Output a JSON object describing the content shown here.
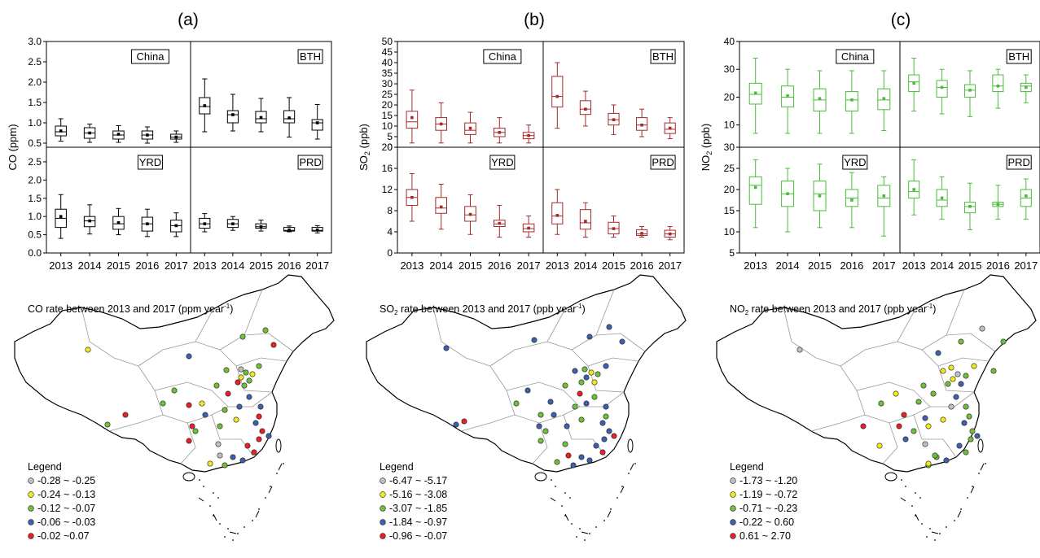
{
  "figure": {
    "panel_labels": [
      "(a)",
      "(b)",
      "(c)"
    ]
  },
  "colors": {
    "co": "#000000",
    "so2": "#a52a2a",
    "no2": "#4cbb3c",
    "legend_classes": [
      "#c0c0c0",
      "#f2ea1f",
      "#6fbf3a",
      "#3f5fb0",
      "#e8202a"
    ],
    "map_outline": "#000000",
    "map_province": "#9a9a9a"
  },
  "chart_data": [
    {
      "type": "box",
      "id": "co",
      "ylabel": "CO (ppm)",
      "categories": [
        "2013",
        "2014",
        "2015",
        "2016",
        "2017"
      ],
      "top_ylim": [
        0.4,
        3.0
      ],
      "top_yticks": [
        "0.5",
        "1.0",
        "1.5",
        "2.0",
        "2.5",
        "3.0"
      ],
      "bottom_ylim": [
        0.0,
        2.9
      ],
      "bottom_yticks": [
        "0.0",
        "0.5",
        "1.0",
        "1.5",
        "2.0",
        "2.5"
      ],
      "regions": [
        {
          "name": "China",
          "row": "top",
          "col": "left",
          "boxes": [
            {
              "min": 0.55,
              "q1": 0.68,
              "med": 0.78,
              "q3": 0.92,
              "max": 1.1,
              "mean": 0.8
            },
            {
              "min": 0.52,
              "q1": 0.62,
              "med": 0.75,
              "q3": 0.88,
              "max": 0.97,
              "mean": 0.75
            },
            {
              "min": 0.52,
              "q1": 0.6,
              "med": 0.7,
              "q3": 0.8,
              "max": 0.93,
              "mean": 0.72
            },
            {
              "min": 0.5,
              "q1": 0.6,
              "med": 0.7,
              "q3": 0.8,
              "max": 0.9,
              "mean": 0.7
            },
            {
              "min": 0.52,
              "q1": 0.6,
              "med": 0.65,
              "q3": 0.72,
              "max": 0.8,
              "mean": 0.65
            }
          ]
        },
        {
          "name": "BTH",
          "row": "top",
          "col": "right",
          "boxes": [
            {
              "min": 0.78,
              "q1": 1.22,
              "med": 1.4,
              "q3": 1.62,
              "max": 2.08,
              "mean": 1.42
            },
            {
              "min": 0.8,
              "q1": 1.0,
              "med": 1.2,
              "q3": 1.3,
              "max": 1.7,
              "mean": 1.2
            },
            {
              "min": 0.78,
              "q1": 1.0,
              "med": 1.1,
              "q3": 1.28,
              "max": 1.6,
              "mean": 1.13
            },
            {
              "min": 0.65,
              "q1": 1.0,
              "med": 1.1,
              "q3": 1.3,
              "max": 1.62,
              "mean": 1.12
            },
            {
              "min": 0.6,
              "q1": 0.82,
              "med": 1.0,
              "q3": 1.08,
              "max": 1.45,
              "mean": 1.0
            }
          ]
        },
        {
          "name": "YRD",
          "row": "bottom",
          "col": "left",
          "boxes": [
            {
              "min": 0.4,
              "q1": 0.7,
              "med": 0.95,
              "q3": 1.2,
              "max": 1.6,
              "mean": 1.0
            },
            {
              "min": 0.52,
              "q1": 0.72,
              "med": 0.88,
              "q3": 1.0,
              "max": 1.32,
              "mean": 0.88
            },
            {
              "min": 0.5,
              "q1": 0.65,
              "med": 0.8,
              "q3": 1.0,
              "max": 1.22,
              "mean": 0.83
            },
            {
              "min": 0.45,
              "q1": 0.6,
              "med": 0.8,
              "q3": 0.98,
              "max": 1.2,
              "mean": 0.8
            },
            {
              "min": 0.45,
              "q1": 0.58,
              "med": 0.75,
              "q3": 0.9,
              "max": 1.1,
              "mean": 0.75
            }
          ]
        },
        {
          "name": "PRD",
          "row": "bottom",
          "col": "right",
          "boxes": [
            {
              "min": 0.58,
              "q1": 0.68,
              "med": 0.8,
              "q3": 0.95,
              "max": 1.08,
              "mean": 0.8
            },
            {
              "min": 0.62,
              "q1": 0.7,
              "med": 0.8,
              "q3": 0.92,
              "max": 1.0,
              "mean": 0.8
            },
            {
              "min": 0.6,
              "q1": 0.68,
              "med": 0.72,
              "q3": 0.8,
              "max": 0.9,
              "mean": 0.72
            },
            {
              "min": 0.58,
              "q1": 0.6,
              "med": 0.62,
              "q3": 0.7,
              "max": 0.74,
              "mean": 0.63
            },
            {
              "min": 0.55,
              "q1": 0.6,
              "med": 0.62,
              "q3": 0.7,
              "max": 0.75,
              "mean": 0.63
            }
          ]
        }
      ]
    },
    {
      "type": "box",
      "id": "so2",
      "ylabel": "SO",
      "ylabel_sub": "2",
      "ylabel_rest": " (ppb)",
      "categories": [
        "2013",
        "2014",
        "2015",
        "2016",
        "2017"
      ],
      "top_ylim": [
        0,
        50
      ],
      "top_yticks": [
        "0",
        "5",
        "10",
        "15",
        "20",
        "25",
        "30",
        "35",
        "40",
        "45",
        "50"
      ],
      "bottom_ylim": [
        0,
        20
      ],
      "bottom_yticks": [
        "0",
        "4",
        "8",
        "12",
        "16",
        "20"
      ],
      "regions": [
        {
          "name": "China",
          "row": "top",
          "col": "left",
          "boxes": [
            {
              "min": 2,
              "q1": 9,
              "med": 12,
              "q3": 17,
              "max": 27,
              "mean": 14
            },
            {
              "min": 2,
              "q1": 8,
              "med": 11,
              "q3": 14,
              "max": 21,
              "mean": 11
            },
            {
              "min": 2,
              "q1": 6,
              "med": 8,
              "q3": 11.5,
              "max": 16.5,
              "mean": 9
            },
            {
              "min": 2,
              "q1": 5,
              "med": 7,
              "q3": 9,
              "max": 14,
              "mean": 7
            },
            {
              "min": 2,
              "q1": 4,
              "med": 5.5,
              "q3": 7,
              "max": 10.5,
              "mean": 5.5
            }
          ]
        },
        {
          "name": "BTH",
          "row": "top",
          "col": "right",
          "boxes": [
            {
              "min": 9,
              "q1": 19,
              "med": 24,
              "q3": 33.5,
              "max": 40,
              "mean": 24
            },
            {
              "min": 10,
              "q1": 15.5,
              "med": 18,
              "q3": 22,
              "max": 26.5,
              "mean": 18
            },
            {
              "min": 6,
              "q1": 10.5,
              "med": 13,
              "q3": 16,
              "max": 20,
              "mean": 13
            },
            {
              "min": 5,
              "q1": 8,
              "med": 10.5,
              "q3": 14,
              "max": 18,
              "mean": 10.5
            },
            {
              "min": 4,
              "q1": 6.5,
              "med": 8.5,
              "q3": 11.5,
              "max": 14,
              "mean": 9
            }
          ]
        },
        {
          "name": "YRD",
          "row": "bottom",
          "col": "left",
          "boxes": [
            {
              "min": 6,
              "q1": 9,
              "med": 10.5,
              "q3": 12,
              "max": 15,
              "mean": 10.5
            },
            {
              "min": 4.5,
              "q1": 7.5,
              "med": 8.5,
              "q3": 10.5,
              "max": 13,
              "mean": 8.7
            },
            {
              "min": 3.5,
              "q1": 6,
              "med": 7.2,
              "q3": 8.8,
              "max": 11,
              "mean": 7.3
            },
            {
              "min": 3,
              "q1": 5,
              "med": 5.5,
              "q3": 6.2,
              "max": 9,
              "mean": 5.6
            },
            {
              "min": 3,
              "q1": 4,
              "med": 4.6,
              "q3": 5.5,
              "max": 7,
              "mean": 4.7
            }
          ]
        },
        {
          "name": "PRD",
          "row": "bottom",
          "col": "right",
          "boxes": [
            {
              "min": 3.5,
              "q1": 5.5,
              "med": 7,
              "q3": 9.5,
              "max": 12,
              "mean": 7.1
            },
            {
              "min": 3,
              "q1": 4.5,
              "med": 5.7,
              "q3": 8.2,
              "max": 9.5,
              "mean": 6
            },
            {
              "min": 3,
              "q1": 3.6,
              "med": 4.6,
              "q3": 5.8,
              "max": 7,
              "mean": 4.6
            },
            {
              "min": 3,
              "q1": 3.3,
              "med": 3.6,
              "q3": 4.4,
              "max": 5,
              "mean": 3.7
            },
            {
              "min": 2.5,
              "q1": 3,
              "med": 3.6,
              "q3": 4.3,
              "max": 5,
              "mean": 3.6
            }
          ]
        }
      ]
    },
    {
      "type": "box",
      "id": "no2",
      "ylabel": "NO",
      "ylabel_sub": "2",
      "ylabel_rest": " (ppb)",
      "categories": [
        "2013",
        "2014",
        "2015",
        "2016",
        "2017"
      ],
      "top_ylim": [
        2,
        40
      ],
      "top_yticks": [
        "10",
        "20",
        "30",
        "40"
      ],
      "bottom_ylim": [
        5,
        30
      ],
      "bottom_yticks": [
        "5",
        "10",
        "15",
        "20",
        "25",
        "30"
      ],
      "regions": [
        {
          "name": "China",
          "row": "top",
          "col": "left",
          "boxes": [
            {
              "min": 7,
              "q1": 17.5,
              "med": 21,
              "q3": 25,
              "max": 34,
              "mean": 21.5
            },
            {
              "min": 7,
              "q1": 16.5,
              "med": 20,
              "q3": 24,
              "max": 30,
              "mean": 20.5
            },
            {
              "min": 7,
              "q1": 15,
              "med": 19,
              "q3": 23,
              "max": 29.5,
              "mean": 19.5
            },
            {
              "min": 7,
              "q1": 15,
              "med": 19,
              "q3": 22,
              "max": 29.5,
              "mean": 19
            },
            {
              "min": 8,
              "q1": 15.5,
              "med": 19,
              "q3": 23,
              "max": 29.5,
              "mean": 19.5
            }
          ]
        },
        {
          "name": "BTH",
          "row": "top",
          "col": "right",
          "boxes": [
            {
              "min": 15,
              "q1": 22,
              "med": 25.5,
              "q3": 28,
              "max": 34,
              "mean": 25
            },
            {
              "min": 14,
              "q1": 20,
              "med": 23.5,
              "q3": 26,
              "max": 30,
              "mean": 23.5
            },
            {
              "min": 13,
              "q1": 20,
              "med": 22.5,
              "q3": 24.5,
              "max": 29.5,
              "mean": 22.5
            },
            {
              "min": 16,
              "q1": 22,
              "med": 24,
              "q3": 28,
              "max": 30,
              "mean": 24
            },
            {
              "min": 18,
              "q1": 22,
              "med": 24,
              "q3": 25,
              "max": 28,
              "mean": 23.5
            }
          ]
        },
        {
          "name": "YRD",
          "row": "bottom",
          "col": "left",
          "boxes": [
            {
              "min": 11,
              "q1": 16.5,
              "med": 21,
              "q3": 23,
              "max": 27,
              "mean": 20.5
            },
            {
              "min": 10,
              "q1": 16,
              "med": 19,
              "q3": 22,
              "max": 25,
              "mean": 19
            },
            {
              "min": 11,
              "q1": 15,
              "med": 19,
              "q3": 22,
              "max": 26,
              "mean": 18.5
            },
            {
              "min": 11,
              "q1": 16,
              "med": 18,
              "q3": 20,
              "max": 24,
              "mean": 17.5
            },
            {
              "min": 9,
              "q1": 16,
              "med": 18,
              "q3": 21,
              "max": 23,
              "mean": 18.5
            }
          ]
        },
        {
          "name": "PRD",
          "row": "bottom",
          "col": "right",
          "boxes": [
            {
              "min": 14,
              "q1": 18,
              "med": 19.5,
              "q3": 22,
              "max": 27,
              "mean": 20
            },
            {
              "min": 13,
              "q1": 16,
              "med": 17.5,
              "q3": 20,
              "max": 23,
              "mean": 18
            },
            {
              "min": 10.5,
              "q1": 14.5,
              "med": 16,
              "q3": 17,
              "max": 21.5,
              "mean": 16
            },
            {
              "min": 13,
              "q1": 16,
              "med": 16.5,
              "q3": 17,
              "max": 21,
              "mean": 16.5
            },
            {
              "min": 13,
              "q1": 16,
              "med": 18,
              "q3": 20,
              "max": 22.5,
              "mean": 18.5
            }
          ]
        }
      ]
    }
  ],
  "maps": [
    {
      "title": "CO rate between 2013 and 2017 (ppm year",
      "title_sup": "-1",
      "title_end": ")",
      "legend_title": "Legend",
      "legend": [
        "-0.28 ~ -0.25",
        "-0.24 ~ -0.13",
        "-0.12 ~ -0.07",
        "-0.06 ~ -0.03",
        "-0.02 ~0.07"
      ]
    },
    {
      "title": "SO",
      "title_sub": "2",
      "title_rest": " rate between 2013 and 2017 (ppb year",
      "title_sup": "-1",
      "title_end": ")",
      "legend_title": "Legend",
      "legend": [
        "-6.47 ~ -5.17",
        "-5.16 ~ -3.08",
        "-3.07 ~ -1.85",
        "-1.84 ~ -0.97",
        "-0.96 ~ -0.07"
      ]
    },
    {
      "title": "NO",
      "title_sub": "2",
      "title_rest": " rate between 2013 and 2017 (ppb year",
      "title_sup": "-1",
      "title_end": ")",
      "legend_title": "Legend",
      "legend": [
        "-1.73 ~ -1.20",
        "-1.19 ~ -0.72",
        "-0.71 ~ -0.23",
        "-0.22 ~ 0.60",
        "0.61 ~ 2.70"
      ]
    }
  ]
}
